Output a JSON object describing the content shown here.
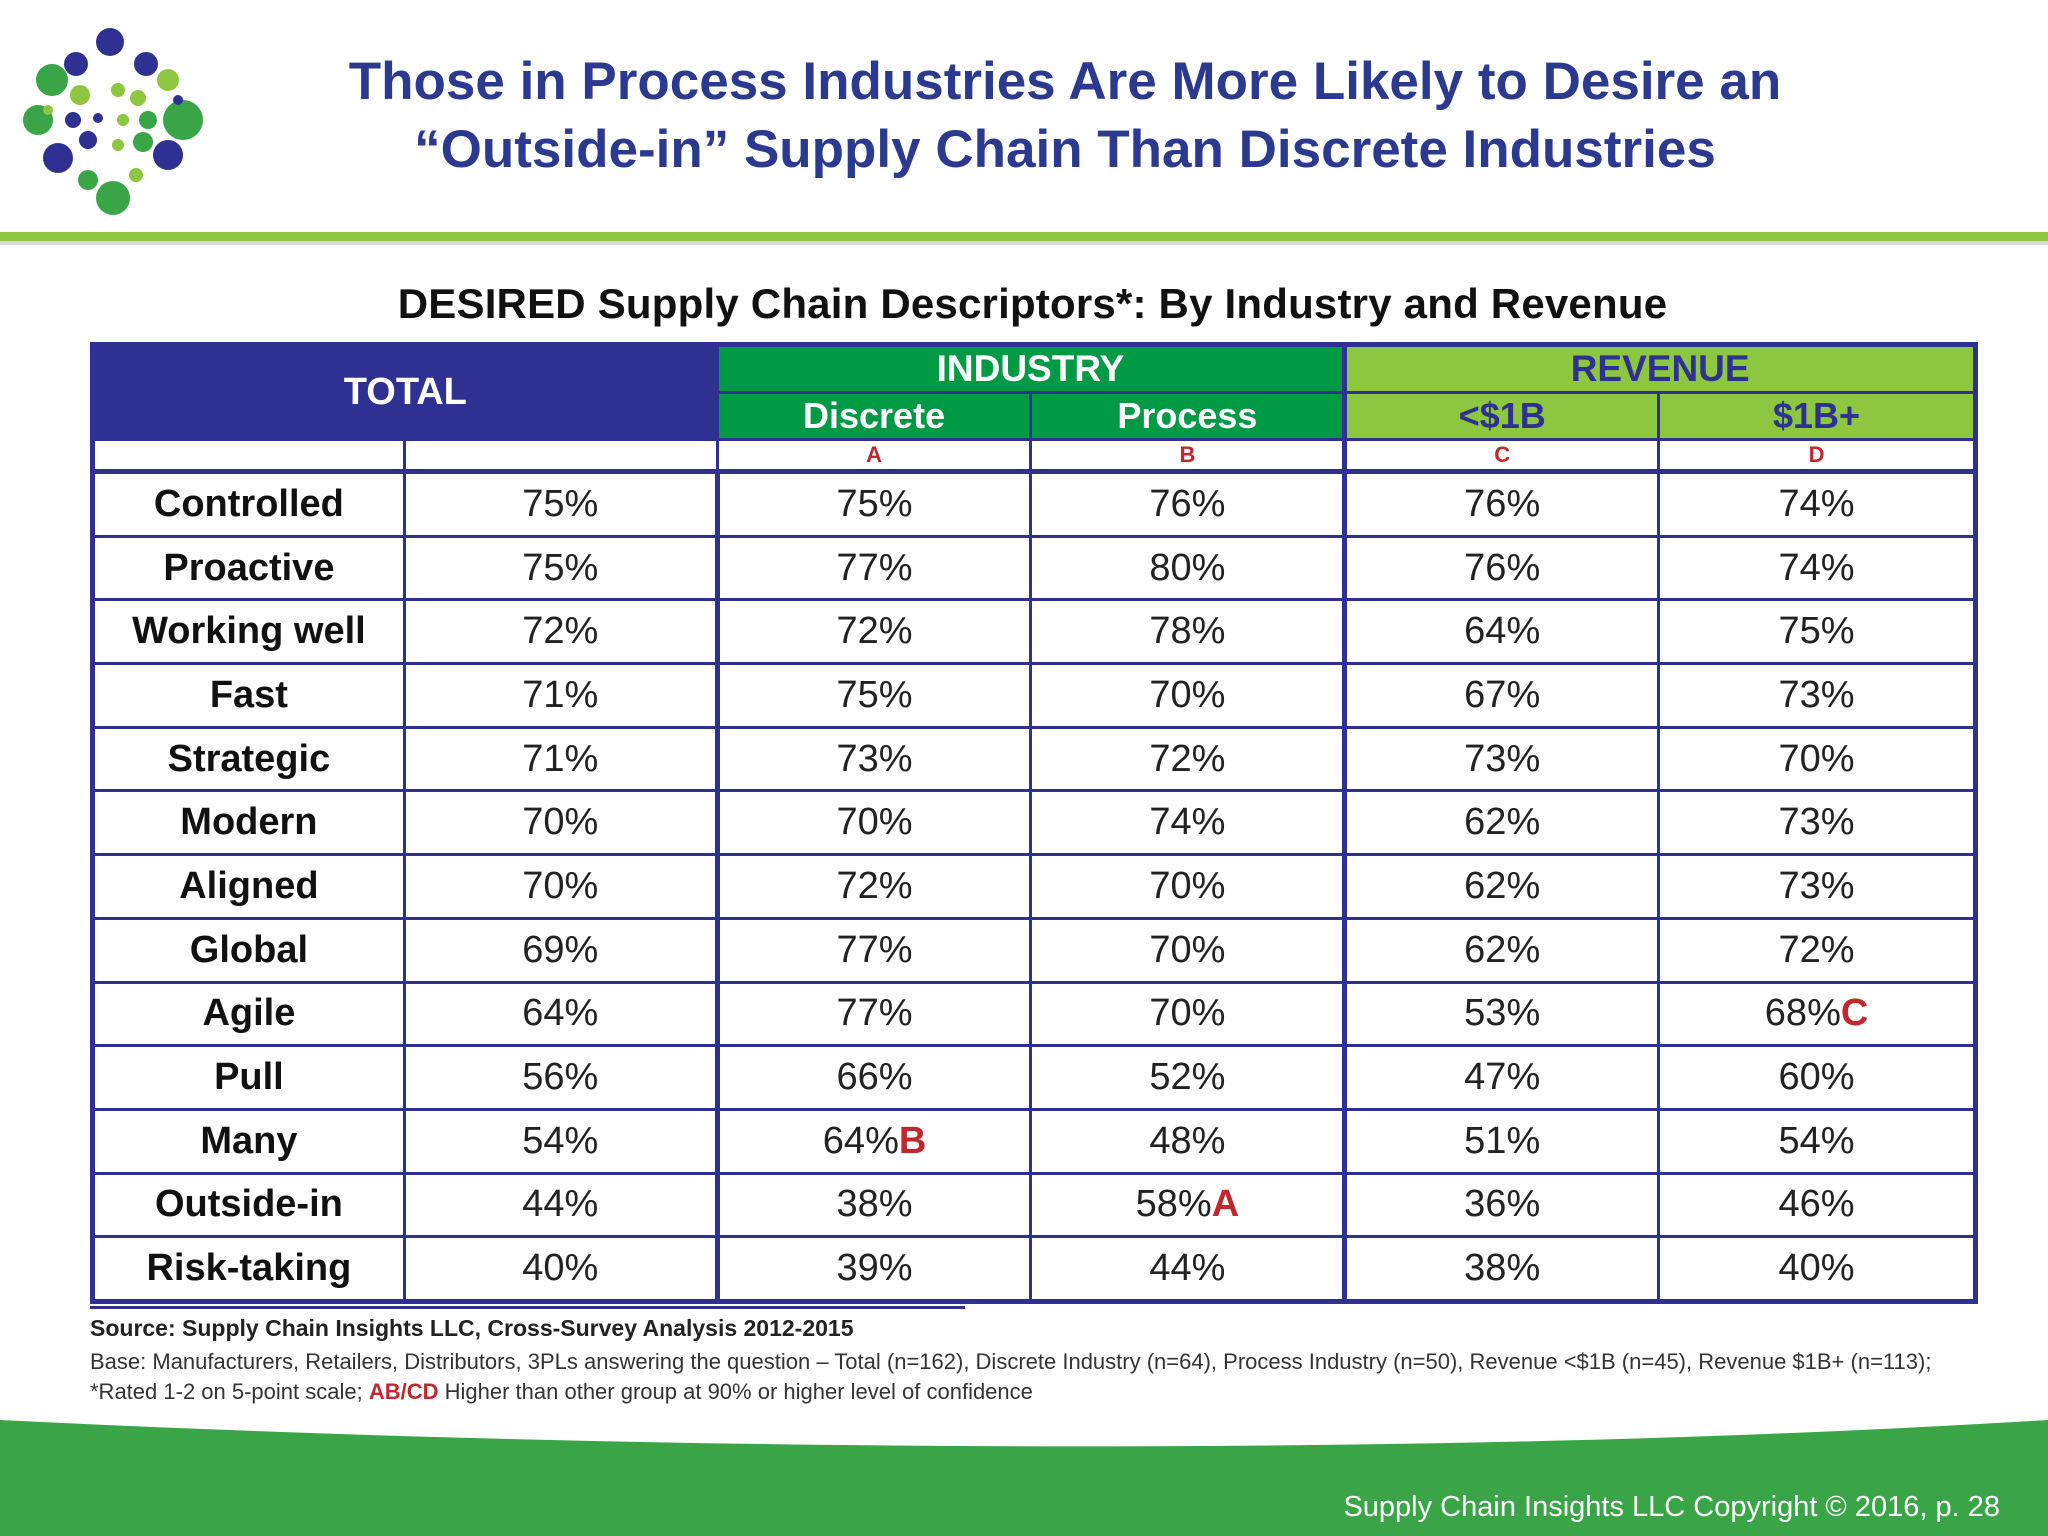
{
  "slide": {
    "title_lines": [
      "Those in Process Industries Are More Likely to Desire an",
      "“Outside-in” Supply Chain Than Discrete Industries"
    ],
    "copyright": "Supply Chain Insights LLC Copyright © 2016, p. 28"
  },
  "colors": {
    "navy": "#2e3192",
    "title_blue": "#2b3990",
    "green": "#009a44",
    "light_green": "#8dc63f",
    "significance_red": "#c1272d"
  },
  "chart_data": {
    "type": "table",
    "title": "DESIRED Supply Chain Descriptors*: By Industry and Revenue",
    "header": {
      "total": "TOTAL",
      "industry": "INDUSTRY",
      "revenue": "REVENUE",
      "discrete": "Discrete",
      "process": "Process",
      "under_1b": "<$1B",
      "over_1b": "$1B+",
      "letters": [
        "A",
        "B",
        "C",
        "D"
      ]
    },
    "rows": [
      {
        "label": "Controlled",
        "total": "75%",
        "discrete": "75%",
        "discrete_sig": "",
        "process": "76%",
        "process_sig": "",
        "under_1b": "76%",
        "under_1b_sig": "",
        "over_1b": "74%",
        "over_1b_sig": ""
      },
      {
        "label": "Proactive",
        "total": "75%",
        "discrete": "77%",
        "discrete_sig": "",
        "process": "80%",
        "process_sig": "",
        "under_1b": "76%",
        "under_1b_sig": "",
        "over_1b": "74%",
        "over_1b_sig": ""
      },
      {
        "label": "Working well",
        "total": "72%",
        "discrete": "72%",
        "discrete_sig": "",
        "process": "78%",
        "process_sig": "",
        "under_1b": "64%",
        "under_1b_sig": "",
        "over_1b": "75%",
        "over_1b_sig": ""
      },
      {
        "label": "Fast",
        "total": "71%",
        "discrete": "75%",
        "discrete_sig": "",
        "process": "70%",
        "process_sig": "",
        "under_1b": "67%",
        "under_1b_sig": "",
        "over_1b": "73%",
        "over_1b_sig": ""
      },
      {
        "label": "Strategic",
        "total": "71%",
        "discrete": "73%",
        "discrete_sig": "",
        "process": "72%",
        "process_sig": "",
        "under_1b": "73%",
        "under_1b_sig": "",
        "over_1b": "70%",
        "over_1b_sig": ""
      },
      {
        "label": "Modern",
        "total": "70%",
        "discrete": "70%",
        "discrete_sig": "",
        "process": "74%",
        "process_sig": "",
        "under_1b": "62%",
        "under_1b_sig": "",
        "over_1b": "73%",
        "over_1b_sig": ""
      },
      {
        "label": "Aligned",
        "total": "70%",
        "discrete": "72%",
        "discrete_sig": "",
        "process": "70%",
        "process_sig": "",
        "under_1b": "62%",
        "under_1b_sig": "",
        "over_1b": "73%",
        "over_1b_sig": ""
      },
      {
        "label": "Global",
        "total": "69%",
        "discrete": "77%",
        "discrete_sig": "",
        "process": "70%",
        "process_sig": "",
        "under_1b": "62%",
        "under_1b_sig": "",
        "over_1b": "72%",
        "over_1b_sig": ""
      },
      {
        "label": "Agile",
        "total": "64%",
        "discrete": "77%",
        "discrete_sig": "",
        "process": "70%",
        "process_sig": "",
        "under_1b": "53%",
        "under_1b_sig": "",
        "over_1b": "68%",
        "over_1b_sig": "C"
      },
      {
        "label": "Pull",
        "total": "56%",
        "discrete": "66%",
        "discrete_sig": "",
        "process": "52%",
        "process_sig": "",
        "under_1b": "47%",
        "under_1b_sig": "",
        "over_1b": "60%",
        "over_1b_sig": ""
      },
      {
        "label": "Many",
        "total": "54%",
        "discrete": "64%",
        "discrete_sig": "B",
        "process": "48%",
        "process_sig": "",
        "under_1b": "51%",
        "under_1b_sig": "",
        "over_1b": "54%",
        "over_1b_sig": ""
      },
      {
        "label": "Outside-in",
        "total": "44%",
        "discrete": "38%",
        "discrete_sig": "",
        "process": "58%",
        "process_sig": "A",
        "under_1b": "36%",
        "under_1b_sig": "",
        "over_1b": "46%",
        "over_1b_sig": ""
      },
      {
        "label": "Risk-taking",
        "total": "40%",
        "discrete": "39%",
        "discrete_sig": "",
        "process": "44%",
        "process_sig": "",
        "under_1b": "38%",
        "under_1b_sig": "",
        "over_1b": "40%",
        "over_1b_sig": ""
      }
    ]
  },
  "notes": {
    "source": "Source:  Supply Chain Insights LLC, Cross-Survey Analysis 2012-2015",
    "base_part1": "Base:  Manufacturers,  Retailers, Distributors, 3PLs answering the question – Total (n=162), Discrete Industry (n=64), Process Industry (n=50), Revenue <$1B (n=45), Revenue $1B+ (n=113); *Rated 1-2 on 5-point scale; ",
    "base_highlight": "AB/CD",
    "base_part2": " Higher than other group at 90% or higher level of confidence"
  }
}
